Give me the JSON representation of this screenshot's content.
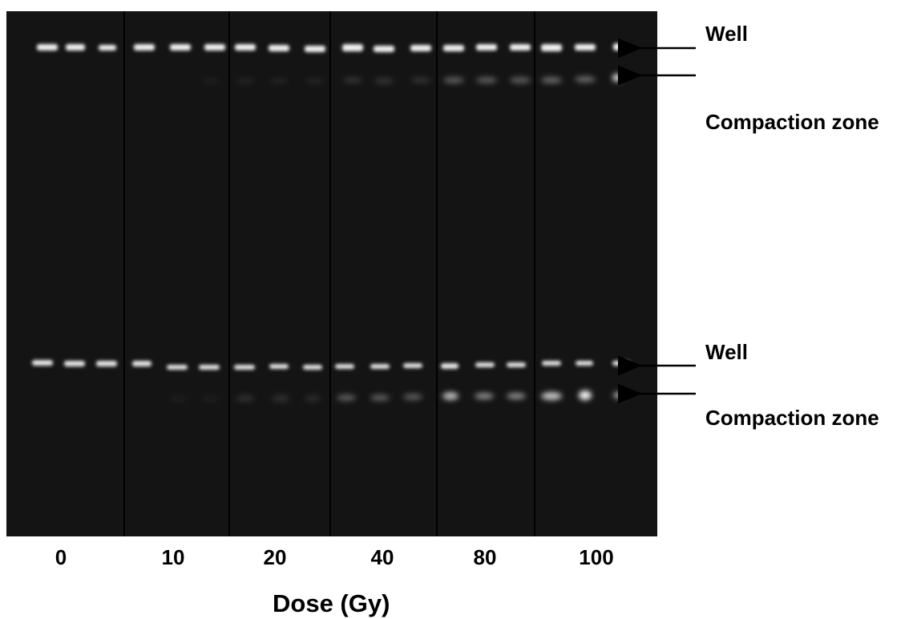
{
  "figure": {
    "doses": [
      "0",
      "10",
      "20",
      "40",
      "80",
      "100"
    ],
    "xlabel": "Dose (Gy)",
    "annotations": {
      "top": {
        "well": "Well",
        "compaction": "Compaction zone"
      },
      "bottom": {
        "well": "Well",
        "compaction": "Compaction zone"
      }
    },
    "colors": {
      "gel": "#141414",
      "band": "#ffffff",
      "divider": "#000000",
      "label": "#000000"
    }
  }
}
